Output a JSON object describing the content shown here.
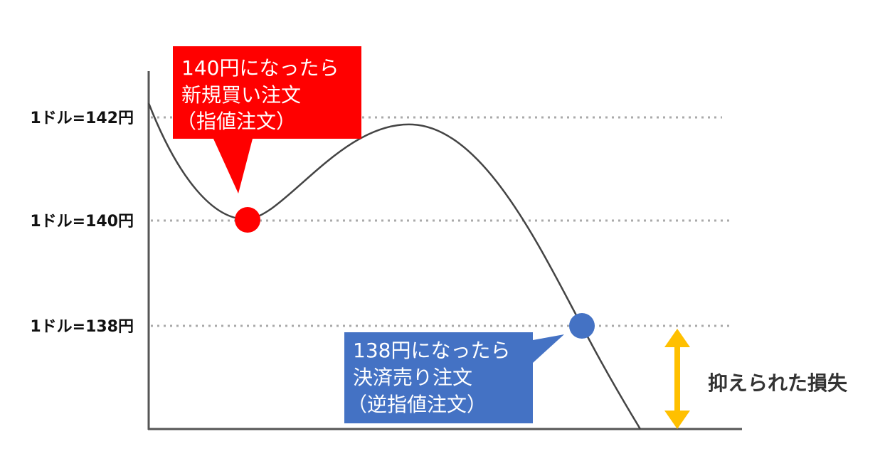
{
  "levels": [
    "1ドル=142円",
    "1ドル=140円",
    "1ドル=138円"
  ],
  "buy_callout": {
    "lines": [
      "140円になったら",
      "新規買い注文",
      "（指値注文）"
    ]
  },
  "sell_callout": {
    "lines": [
      "138円になったら",
      "決済売り注文",
      "（逆指値注文）"
    ]
  },
  "annotation": "抑えられた損失"
}
